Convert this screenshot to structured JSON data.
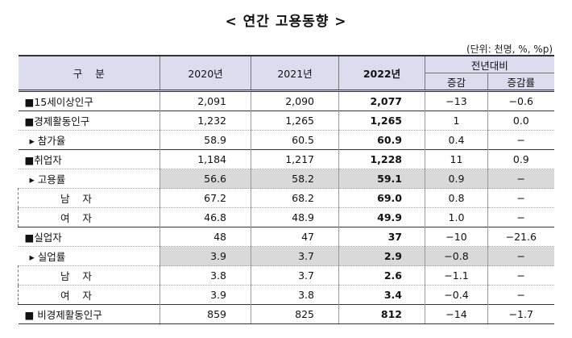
{
  "title": "< 연간 고용동향 >",
  "unit": "(단위: 천명, %, %p)",
  "table": {
    "header": [
      "구    분",
      "2020년",
      "2021년",
      "2022년",
      "전년대비",
      "증감",
      "증감률"
    ],
    "rows": [
      [
        "■15세이상인구",
        "2,091",
        "2,090",
        "2,077",
        "−13",
        "−0.6"
      ],
      [
        "■경제활동인구",
        "1,232",
        "1,265",
        "1,265",
        "1",
        "0.0"
      ],
      [
        "▸ 참가율",
        "58.9",
        "60.5",
        "60.9",
        "0.4",
        "−"
      ],
      [
        "■취업자",
        "1,184",
        "1,217",
        "1,228",
        "11",
        "0.9"
      ],
      [
        "▸ 고용률",
        "56.6",
        "58.2",
        "59.1",
        "0.9",
        "−"
      ],
      [
        "남    자",
        "67.2",
        "68.2",
        "69.0",
        "0.8",
        "−"
      ],
      [
        "여    자",
        "46.8",
        "48.9",
        "49.9",
        "1.0",
        "−"
      ],
      [
        "■실업자",
        "48",
        "47",
        "37",
        "−10",
        "−21.6"
      ],
      [
        "▸ 실업률",
        "3.9",
        "3.7",
        "2.9",
        "−0.8",
        "−"
      ],
      [
        "남    자",
        "3.8",
        "3.7",
        "2.6",
        "−1.1",
        "−"
      ],
      [
        "여    자",
        "3.9",
        "3.8",
        "3.4",
        "−0.4",
        "−"
      ],
      [
        "■ 비경제활동인구",
        "859",
        "825",
        "812",
        "−14",
        "−1.7"
      ]
    ]
  }
}
